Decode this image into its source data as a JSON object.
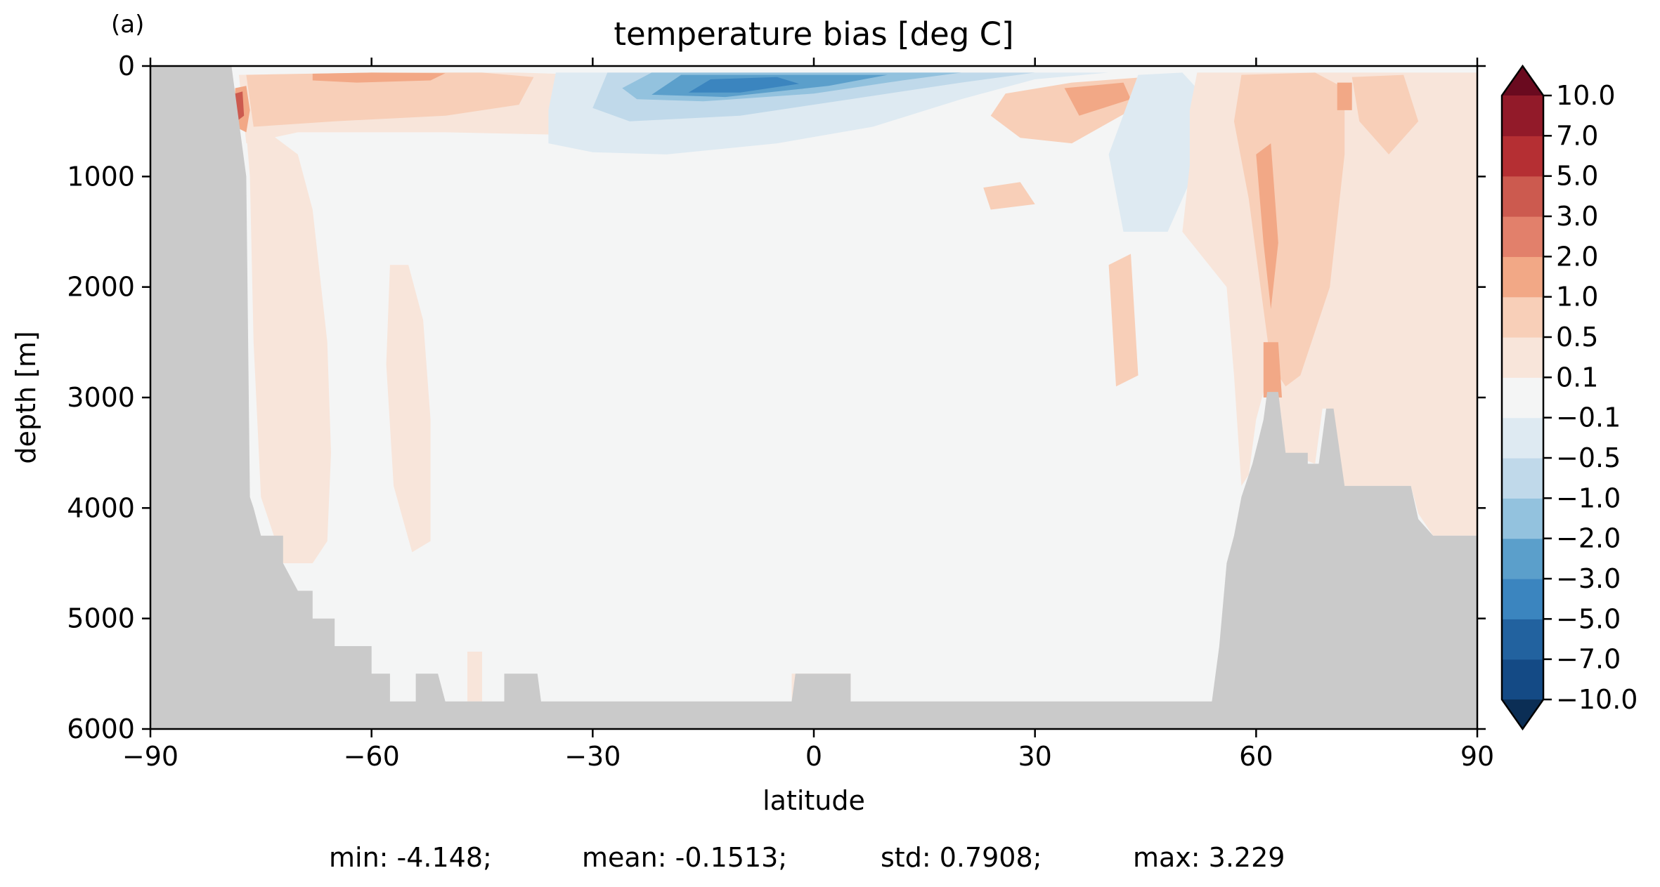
{
  "chart_data": {
    "type": "heatmap",
    "panel_label": "(a)",
    "title": "temperature bias [deg C]",
    "xlabel": "latitude",
    "ylabel": "depth [m]",
    "xlim": [
      -90,
      90
    ],
    "ylim": [
      6000,
      0
    ],
    "xticks": [
      -90,
      -60,
      -30,
      0,
      30,
      60,
      90
    ],
    "yticks": [
      0,
      1000,
      2000,
      3000,
      4000,
      5000,
      6000
    ],
    "xtick_labels": [
      "−90",
      "−60",
      "−30",
      "0",
      "30",
      "60",
      "90"
    ],
    "ytick_labels": [
      "0",
      "1000",
      "2000",
      "3000",
      "4000",
      "5000",
      "6000"
    ],
    "colorbar": {
      "levels": [
        -10.0,
        -7.0,
        -5.0,
        -3.0,
        -2.0,
        -1.0,
        -0.5,
        -0.1,
        0.1,
        0.5,
        1.0,
        2.0,
        3.0,
        5.0,
        7.0,
        10.0
      ],
      "labels": [
        "−10.0",
        "−7.0",
        "−5.0",
        "−3.0",
        "−2.0",
        "−1.0",
        "−0.5",
        "−0.1",
        "0.1",
        "0.5",
        "1.0",
        "2.0",
        "3.0",
        "5.0",
        "7.0",
        "10.0"
      ],
      "colors": [
        "#144a85",
        "#22629f",
        "#3b85bf",
        "#5b9fcb",
        "#93c2de",
        "#c0d9ea",
        "#deeaf2",
        "#f4f5f5",
        "#f8e5da",
        "#f8cfb8",
        "#f2a886",
        "#e2806b",
        "#cc5a4f",
        "#b52f33",
        "#921a29"
      ],
      "under_color": "#0b2e55",
      "over_color": "#6a0a1f",
      "extend": "both"
    },
    "land_color": "#cacaca",
    "bathymetry_bottom": [
      [
        -90,
        0
      ],
      [
        -79,
        0
      ],
      [
        -77,
        1000
      ],
      [
        -76.5,
        3900
      ],
      [
        -76,
        4000
      ],
      [
        -75,
        4250
      ],
      [
        -72,
        4250
      ],
      [
        -72,
        4500
      ],
      [
        -70,
        4750
      ],
      [
        -68,
        4750
      ],
      [
        -68,
        5000
      ],
      [
        -65,
        5000
      ],
      [
        -65,
        5250
      ],
      [
        -60,
        5250
      ],
      [
        -60,
        5500
      ],
      [
        -57.5,
        5500
      ],
      [
        -57.5,
        5750
      ],
      [
        -54,
        5750
      ],
      [
        -54,
        5500
      ],
      [
        -51,
        5500
      ],
      [
        -50,
        5750
      ],
      [
        -42,
        5750
      ],
      [
        -42,
        5500
      ],
      [
        -37.5,
        5500
      ],
      [
        -37,
        5750
      ],
      [
        -3,
        5750
      ],
      [
        -2.5,
        5500
      ],
      [
        5,
        5500
      ],
      [
        5,
        5750
      ],
      [
        54,
        5750
      ],
      [
        55,
        5250
      ],
      [
        56,
        4500
      ],
      [
        57,
        4250
      ],
      [
        58,
        3900
      ],
      [
        59.5,
        3600
      ],
      [
        61,
        3200
      ],
      [
        61.5,
        2950
      ],
      [
        63,
        2950
      ],
      [
        64,
        3500
      ],
      [
        67,
        3500
      ],
      [
        67,
        3600
      ],
      [
        68.5,
        3600
      ],
      [
        69.5,
        3100
      ],
      [
        70.5,
        3100
      ],
      [
        72,
        3800
      ],
      [
        81,
        3800
      ],
      [
        82,
        4100
      ],
      [
        84,
        4250
      ],
      [
        90,
        4250
      ]
    ],
    "field_regions": [
      {
        "value": 0.3,
        "poly": [
          [
            -78,
            80
          ],
          [
            -60,
            60
          ],
          [
            -40,
            60
          ],
          [
            -30,
            80
          ],
          [
            -28,
            500
          ],
          [
            -36,
            620
          ],
          [
            -50,
            600
          ],
          [
            -70,
            600
          ],
          [
            -77,
            700
          ]
        ]
      },
      {
        "value": 0.7,
        "poly": [
          [
            -77,
            80
          ],
          [
            -60,
            60
          ],
          [
            -45,
            60
          ],
          [
            -38,
            100
          ],
          [
            -40,
            350
          ],
          [
            -50,
            450
          ],
          [
            -65,
            500
          ],
          [
            -76,
            550
          ]
        ]
      },
      {
        "value": 1.5,
        "poly": [
          [
            -68,
            70
          ],
          [
            -60,
            60
          ],
          [
            -50,
            65
          ],
          [
            -52,
            130
          ],
          [
            -62,
            150
          ],
          [
            -68,
            130
          ]
        ]
      },
      {
        "value": 1.5,
        "poly": [
          [
            -78.5,
            200
          ],
          [
            -77,
            180
          ],
          [
            -76.5,
            400
          ],
          [
            -77,
            600
          ],
          [
            -78.5,
            550
          ]
        ]
      },
      {
        "value": 3.5,
        "poly": [
          [
            -78.5,
            250
          ],
          [
            -77.5,
            230
          ],
          [
            -77.3,
            450
          ],
          [
            -78.3,
            500
          ]
        ]
      },
      {
        "value": 0.3,
        "poly": [
          [
            -77,
            600
          ],
          [
            -74,
            600
          ],
          [
            -70,
            800
          ],
          [
            -68,
            1300
          ],
          [
            -66,
            2500
          ],
          [
            -65.5,
            3500
          ],
          [
            -66,
            4300
          ],
          [
            -68,
            4500
          ],
          [
            -72,
            4500
          ],
          [
            -75,
            3900
          ],
          [
            -76,
            2500
          ],
          [
            -76.5,
            1000
          ]
        ]
      },
      {
        "value": 0.3,
        "poly": [
          [
            -57.5,
            1800
          ],
          [
            -55,
            1800
          ],
          [
            -53,
            2300
          ],
          [
            -52,
            3200
          ],
          [
            -52,
            4300
          ],
          [
            -54.5,
            4400
          ],
          [
            -57,
            3800
          ],
          [
            -58,
            2700
          ]
        ]
      },
      {
        "value": -0.3,
        "poly": [
          [
            -35,
            60
          ],
          [
            40,
            60
          ],
          [
            30,
            120
          ],
          [
            20,
            300
          ],
          [
            8,
            550
          ],
          [
            -5,
            700
          ],
          [
            -20,
            800
          ],
          [
            -30,
            780
          ],
          [
            -36,
            700
          ],
          [
            -36,
            400
          ]
        ]
      },
      {
        "value": -0.7,
        "poly": [
          [
            -28,
            60
          ],
          [
            30,
            60
          ],
          [
            20,
            150
          ],
          [
            5,
            300
          ],
          [
            -10,
            450
          ],
          [
            -25,
            500
          ],
          [
            -30,
            380
          ]
        ]
      },
      {
        "value": -1.5,
        "poly": [
          [
            -22,
            60
          ],
          [
            20,
            60
          ],
          [
            12,
            130
          ],
          [
            0,
            250
          ],
          [
            -15,
            320
          ],
          [
            -24,
            300
          ],
          [
            -26,
            200
          ]
        ]
      },
      {
        "value": -2.5,
        "poly": [
          [
            -18,
            80
          ],
          [
            10,
            80
          ],
          [
            2,
            180
          ],
          [
            -12,
            280
          ],
          [
            -22,
            260
          ]
        ]
      },
      {
        "value": -4,
        "poly": [
          [
            -14,
            120
          ],
          [
            -5,
            100
          ],
          [
            -2,
            160
          ],
          [
            -10,
            240
          ],
          [
            -17,
            240
          ]
        ]
      },
      {
        "value": 0.7,
        "poly": [
          [
            26,
            250
          ],
          [
            35,
            150
          ],
          [
            45,
            100
          ],
          [
            43,
            400
          ],
          [
            35,
            700
          ],
          [
            28,
            650
          ],
          [
            24,
            450
          ]
        ]
      },
      {
        "value": 1.5,
        "poly": [
          [
            34,
            200
          ],
          [
            42,
            150
          ],
          [
            43,
            300
          ],
          [
            36,
            450
          ]
        ]
      },
      {
        "value": 0.7,
        "poly": [
          [
            23,
            1100
          ],
          [
            28,
            1050
          ],
          [
            30,
            1250
          ],
          [
            24,
            1300
          ]
        ]
      },
      {
        "value": -0.3,
        "poly": [
          [
            44,
            80
          ],
          [
            50,
            60
          ],
          [
            54,
            350
          ],
          [
            52,
            900
          ],
          [
            48,
            1500
          ],
          [
            42,
            1500
          ],
          [
            40,
            800
          ]
        ]
      },
      {
        "value": 0.3,
        "poly": [
          [
            52,
            60
          ],
          [
            90,
            60
          ],
          [
            90,
            4250
          ],
          [
            84,
            4250
          ],
          [
            82,
            4050
          ],
          [
            81,
            3800
          ],
          [
            72,
            3800
          ],
          [
            70,
            3100
          ],
          [
            69,
            3100
          ],
          [
            68,
            3600
          ],
          [
            64,
            3500
          ],
          [
            63,
            2950
          ],
          [
            61,
            2950
          ],
          [
            60,
            3200
          ],
          [
            59,
            3700
          ],
          [
            58,
            3800
          ],
          [
            57,
            2800
          ],
          [
            56,
            2000
          ],
          [
            50,
            1500
          ],
          [
            51,
            900
          ],
          [
            51,
            400
          ]
        ]
      },
      {
        "value": 0.7,
        "poly": [
          [
            58,
            80
          ],
          [
            68,
            60
          ],
          [
            72,
            200
          ],
          [
            72,
            800
          ],
          [
            70,
            2000
          ],
          [
            66,
            2800
          ],
          [
            64,
            2900
          ],
          [
            62,
            2700
          ],
          [
            59,
            1200
          ],
          [
            57,
            500
          ]
        ]
      },
      {
        "value": 0.7,
        "poly": [
          [
            73,
            100
          ],
          [
            80,
            80
          ],
          [
            82,
            500
          ],
          [
            78,
            800
          ],
          [
            74,
            500
          ]
        ]
      },
      {
        "value": 1.5,
        "poly": [
          [
            60,
            800
          ],
          [
            62,
            700
          ],
          [
            63,
            1600
          ],
          [
            62,
            2200
          ],
          [
            61,
            1600
          ]
        ]
      },
      {
        "value": 1.5,
        "poly": [
          [
            61,
            2500
          ],
          [
            63,
            2500
          ],
          [
            63.5,
            3000
          ],
          [
            61,
            3000
          ]
        ]
      },
      {
        "value": 1.5,
        "poly": [
          [
            71,
            150
          ],
          [
            73,
            150
          ],
          [
            73,
            400
          ],
          [
            71,
            400
          ]
        ]
      },
      {
        "value": 0.7,
        "poly": [
          [
            40,
            1800
          ],
          [
            43,
            1700
          ],
          [
            44,
            2800
          ],
          [
            41,
            2900
          ]
        ]
      },
      {
        "value": 0.3,
        "poly": [
          [
            -3,
            5500
          ],
          [
            5,
            5500
          ],
          [
            5,
            5750
          ],
          [
            -3,
            5750
          ]
        ]
      },
      {
        "value": 0.3,
        "poly": [
          [
            -47,
            5300
          ],
          [
            -45,
            5300
          ],
          [
            -45,
            5750
          ],
          [
            -47,
            5750
          ]
        ]
      }
    ],
    "stats": {
      "min": "min: -4.148;",
      "mean": "mean: -0.1513;",
      "std": "std: 0.7908;",
      "max": "max: 3.229"
    }
  }
}
